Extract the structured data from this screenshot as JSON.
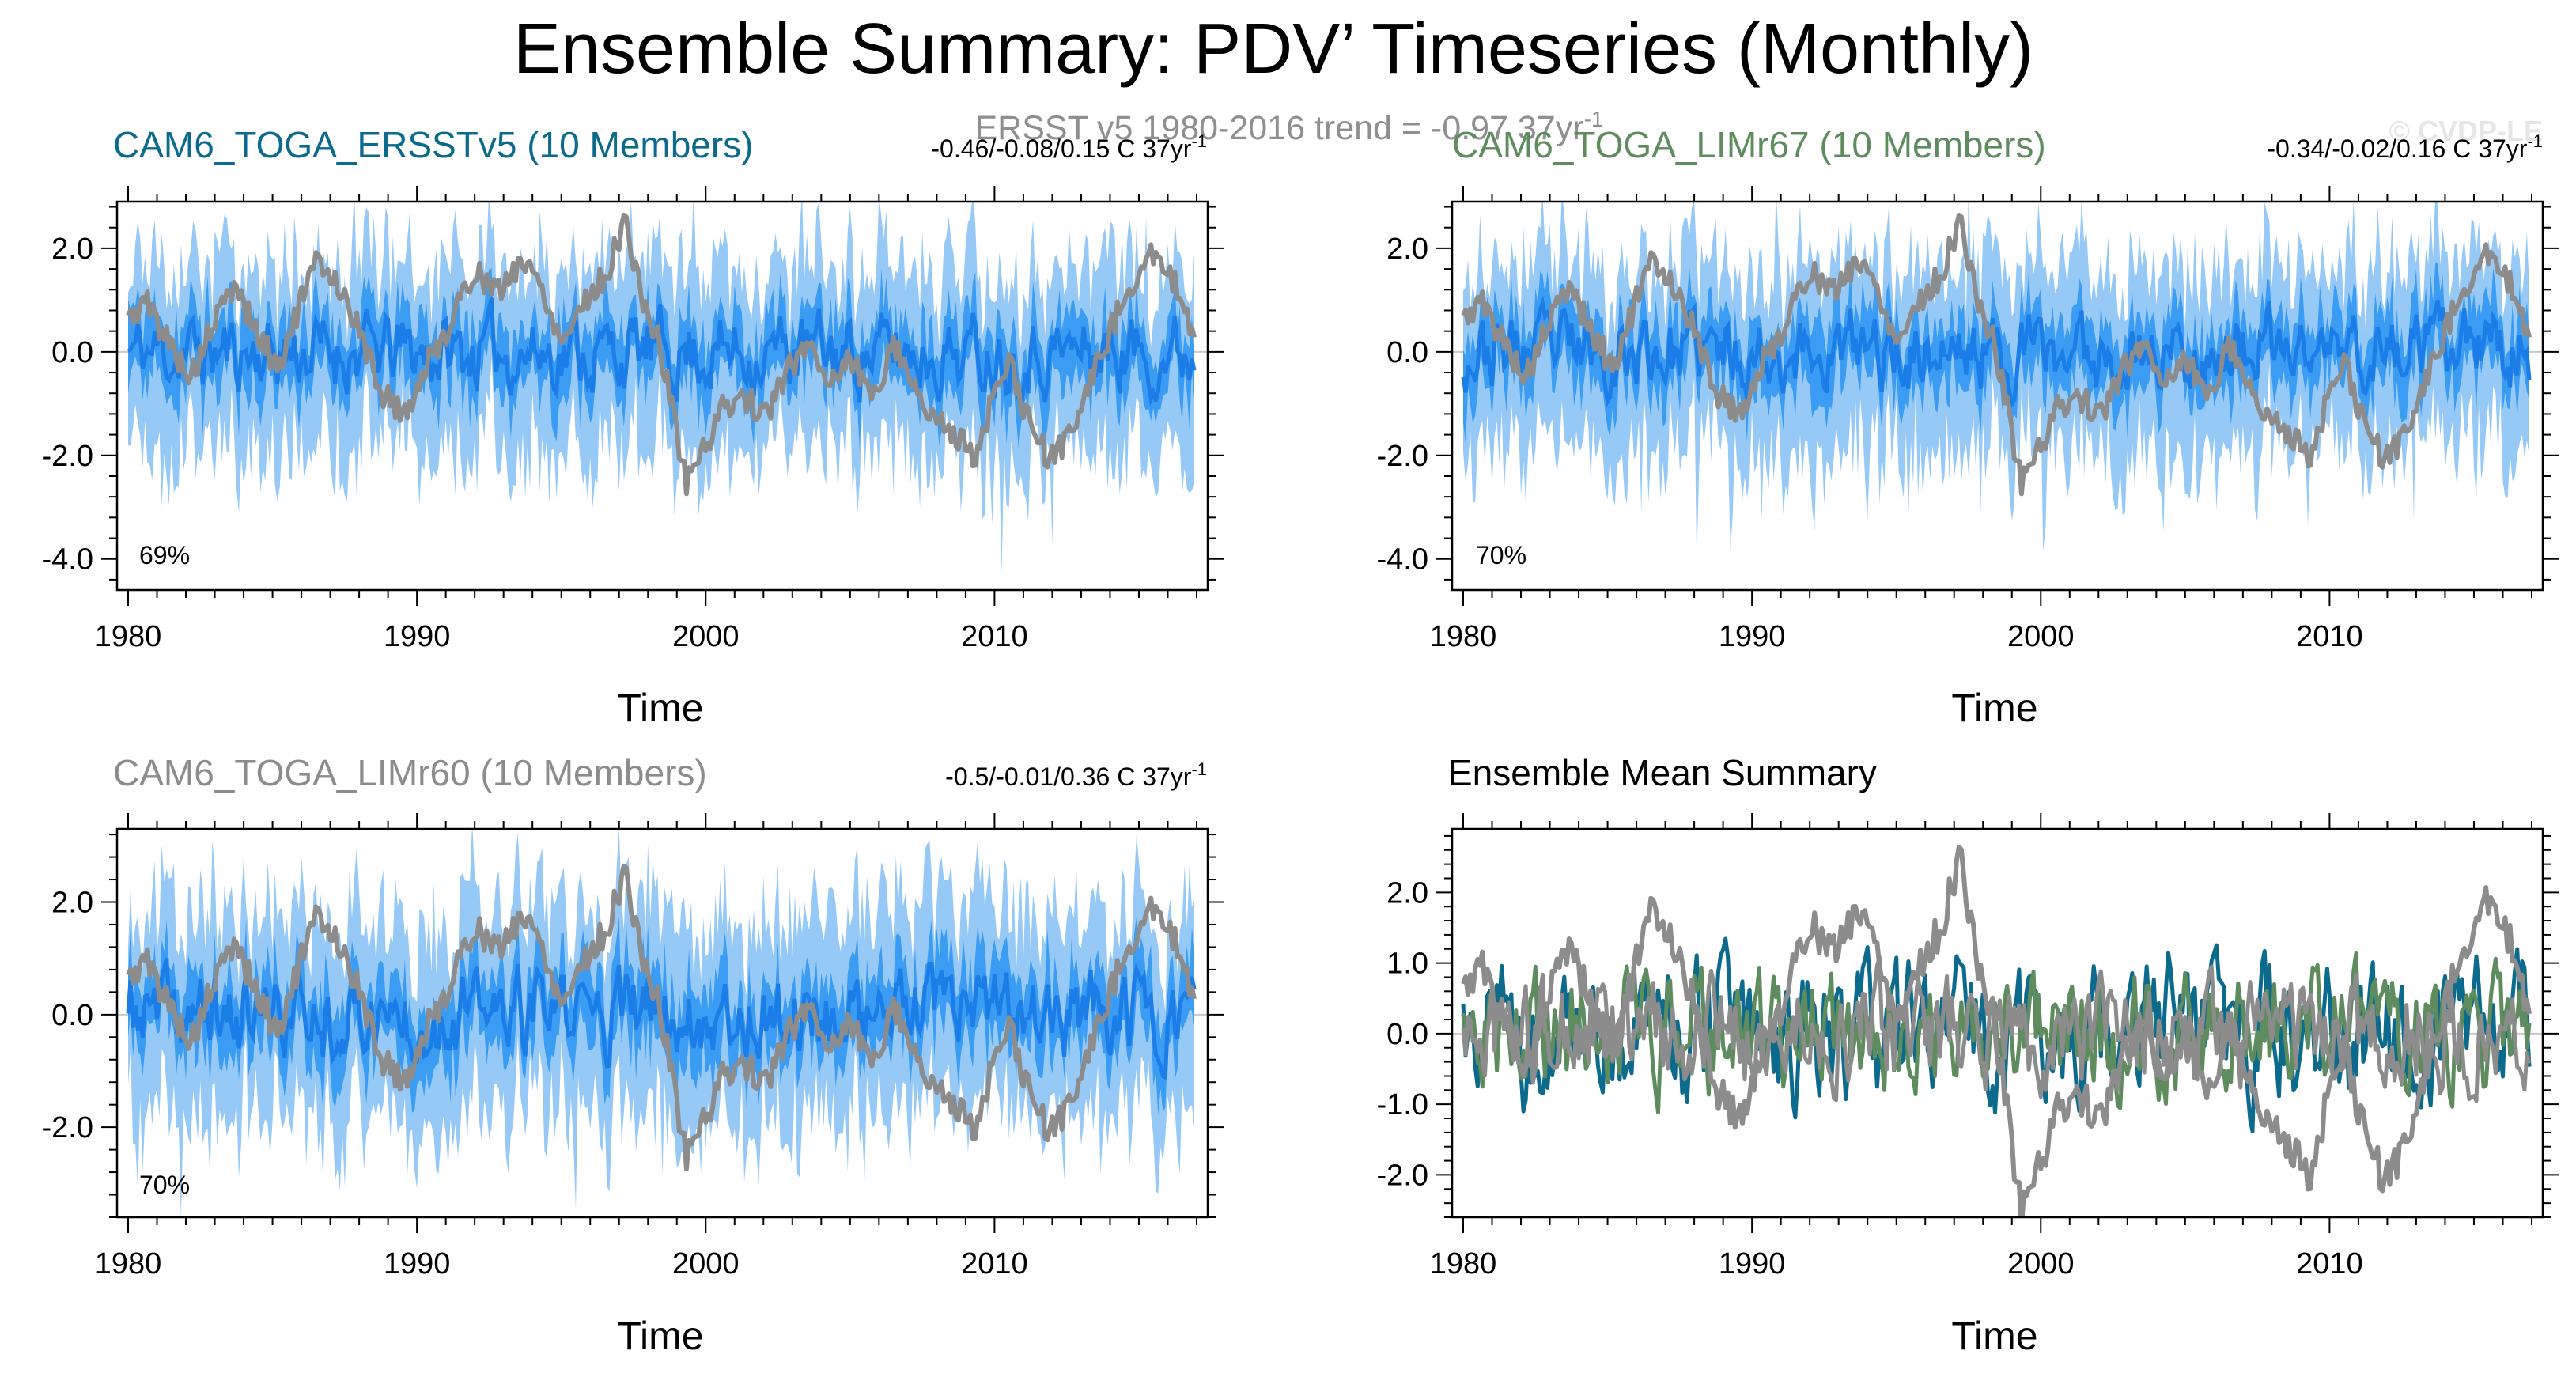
{
  "figure": {
    "title": "Ensemble Summary: PDV’ Timeseries (Monthly)",
    "subtitle": "ERSST v5 1980-2016 trend = -0.97 37yr",
    "subtitle_sup": "-1",
    "watermark": "© CVDP-LE"
  },
  "colors": {
    "ersst_member_spread": "#97c9f6",
    "ersst_iqr": "#3a9cf2",
    "ersst_mean": "#1a7de8",
    "obs": "#8c8c8c",
    "cam6_ersst": "#0c6b8c",
    "cam6_limr67": "#5f8c5f",
    "cam6_limr60": "#8c8c8c"
  },
  "chart_data": [
    {
      "type": "area",
      "panel": "CAM6_TOGA_ERSSTv5",
      "title": "CAM6_TOGA_ERSSTv5 (10 Members)",
      "title_color": "#0c6b8c",
      "trend_label": "-0.46/-0.08/0.15 C 37yr",
      "trend_sup": "-1",
      "percent_label": "69%",
      "xlabel": "Time",
      "ylabel": "",
      "xlim": [
        1980,
        2017
      ],
      "ylim": [
        -4.6,
        2.9
      ],
      "yticks": [
        -4.0,
        -2.0,
        0.0,
        2.0
      ],
      "ytick_labels": [
        "-4.0",
        "-2.0",
        "0.0",
        "2.0"
      ],
      "xticks": [
        1980,
        1990,
        2000,
        2010
      ],
      "xtick_labels": [
        "1980",
        "1990",
        "2000",
        "2010"
      ],
      "seed": 11,
      "series": [
        {
          "name": "ensemble min-max range (10 members)",
          "style": "band",
          "lower_approx": -2.0,
          "upper_approx": 1.8,
          "extremes": {
            "min": -3.9,
            "max": 2.4
          }
        },
        {
          "name": "ensemble interquartile range",
          "style": "band",
          "lower_approx": -0.9,
          "upper_approx": 0.9
        },
        {
          "name": "ensemble mean",
          "style": "line",
          "range": [
            -0.7,
            0.7
          ]
        },
        {
          "name": "ERSST v5 observations",
          "style": "line",
          "min": -2.5,
          "max": 2.6
        }
      ]
    },
    {
      "type": "area",
      "panel": "CAM6_TOGA_LIMr67",
      "title": "CAM6_TOGA_LIMr67 (10 Members)",
      "title_color": "#5f8c5f",
      "trend_label": "-0.34/-0.02/0.16 C 37yr",
      "trend_sup": "-1",
      "percent_label": "70%",
      "xlabel": "Time",
      "ylabel": "",
      "xlim": [
        1980,
        2017
      ],
      "ylim": [
        -4.6,
        2.9
      ],
      "yticks": [
        -4.0,
        -2.0,
        0.0,
        2.0
      ],
      "ytick_labels": [
        "-4.0",
        "-2.0",
        "0.0",
        "2.0"
      ],
      "xticks": [
        1980,
        1990,
        2000,
        2010
      ],
      "xtick_labels": [
        "1980",
        "1990",
        "2000",
        "2010"
      ],
      "seed": 23,
      "series": [
        {
          "name": "ensemble min-max range (10 members)",
          "style": "band",
          "lower_approx": -2.0,
          "upper_approx": 1.8,
          "extremes": {
            "min": -4.0,
            "max": 2.5
          }
        },
        {
          "name": "ensemble interquartile range",
          "style": "band",
          "lower_approx": -0.9,
          "upper_approx": 0.9
        },
        {
          "name": "ensemble mean",
          "style": "line",
          "range": [
            -0.7,
            0.7
          ]
        },
        {
          "name": "ERSST v5 observations",
          "style": "line",
          "min": -2.5,
          "max": 2.6
        }
      ]
    },
    {
      "type": "area",
      "panel": "CAM6_TOGA_LIMr60",
      "title": "CAM6_TOGA_LIMr60 (10 Members)",
      "title_color": "#8c8c8c",
      "trend_label": "-0.5/-0.01/0.36 C 37yr",
      "trend_sup": "-1",
      "percent_label": "70%",
      "xlabel": "Time",
      "ylabel": "",
      "xlim": [
        1980,
        2017
      ],
      "ylim": [
        -3.6,
        3.3
      ],
      "yticks": [
        -2.0,
        0.0,
        2.0
      ],
      "ytick_labels": [
        "-2.0",
        "0.0",
        "2.0"
      ],
      "xticks": [
        1980,
        1990,
        2000,
        2010
      ],
      "xtick_labels": [
        "1980",
        "1990",
        "2000",
        "2010"
      ],
      "seed": 37,
      "series": [
        {
          "name": "ensemble min-max range (10 members)",
          "style": "band",
          "lower_approx": -1.9,
          "upper_approx": 1.9,
          "extremes": {
            "min": -3.2,
            "max": 3.0
          }
        },
        {
          "name": "ensemble interquartile range",
          "style": "band",
          "lower_approx": -0.9,
          "upper_approx": 0.9
        },
        {
          "name": "ensemble mean",
          "style": "line",
          "range": [
            -0.7,
            0.7
          ]
        },
        {
          "name": "ERSST v5 observations",
          "style": "line",
          "min": -2.5,
          "max": 2.6
        }
      ]
    },
    {
      "type": "line",
      "panel": "ensemble-mean-summary",
      "title": "Ensemble Mean Summary",
      "title_color": "#000000",
      "xlabel": "Time",
      "ylabel": "",
      "xlim": [
        1980,
        2017
      ],
      "ylim": [
        -2.6,
        2.9
      ],
      "yticks": [
        -2.0,
        -1.0,
        0.0,
        1.0,
        2.0
      ],
      "ytick_labels": [
        "-2.0",
        "-1.0",
        "0.0",
        "1.0",
        "2.0"
      ],
      "xticks": [
        1980,
        1990,
        2000,
        2010
      ],
      "xtick_labels": [
        "1980",
        "1990",
        "2000",
        "2010"
      ],
      "series": [
        {
          "name": "ERSST v5 observations",
          "color": "#8c8c8c",
          "min": -2.5,
          "max": 2.6
        },
        {
          "name": "CAM6_TOGA_ERSSTv5 ensemble mean",
          "color": "#0c6b8c",
          "range": [
            -0.7,
            0.8
          ]
        },
        {
          "name": "CAM6_TOGA_LIMr67 ensemble mean",
          "color": "#5f8c5f",
          "range": [
            -0.6,
            0.9
          ]
        },
        {
          "name": "CAM6_TOGA_LIMr60 ensemble mean",
          "color": "#8c8c8c",
          "range": [
            -0.6,
            0.6
          ]
        }
      ]
    }
  ],
  "obs_anchors": [
    [
      1980.0,
      0.6
    ],
    [
      1980.6,
      1.0
    ],
    [
      1981.4,
      0.2
    ],
    [
      1982.2,
      -0.5
    ],
    [
      1983.0,
      0.6
    ],
    [
      1983.7,
      1.3
    ],
    [
      1984.5,
      0.3
    ],
    [
      1985.2,
      -0.3
    ],
    [
      1986.0,
      1.0
    ],
    [
      1986.6,
      1.8
    ],
    [
      1987.3,
      1.3
    ],
    [
      1988.0,
      0.4
    ],
    [
      1988.8,
      -0.8
    ],
    [
      1989.6,
      -1.2
    ],
    [
      1990.4,
      -0.2
    ],
    [
      1991.2,
      0.6
    ],
    [
      1992.0,
      1.6
    ],
    [
      1992.8,
      1.1
    ],
    [
      1993.6,
      1.8
    ],
    [
      1994.3,
      1.3
    ],
    [
      1995.0,
      0.2
    ],
    [
      1995.8,
      1.0
    ],
    [
      1996.6,
      1.5
    ],
    [
      1997.2,
      2.6
    ],
    [
      1997.7,
      1.2
    ],
    [
      1998.3,
      0.3
    ],
    [
      1998.9,
      -1.2
    ],
    [
      1999.3,
      -2.5
    ],
    [
      1999.9,
      -1.9
    ],
    [
      2000.6,
      -1.1
    ],
    [
      2001.3,
      -0.8
    ],
    [
      2002.0,
      -1.3
    ],
    [
      2002.8,
      -0.4
    ],
    [
      2003.6,
      0.2
    ],
    [
      2004.3,
      -0.6
    ],
    [
      2005.0,
      -0.1
    ],
    [
      2005.8,
      -0.9
    ],
    [
      2006.5,
      0.2
    ],
    [
      2007.2,
      -0.6
    ],
    [
      2007.8,
      -1.3
    ],
    [
      2008.6,
      -1.5
    ],
    [
      2009.3,
      -2.1
    ],
    [
      2009.9,
      -1.0
    ],
    [
      2010.5,
      -0.2
    ],
    [
      2011.2,
      -1.4
    ],
    [
      2011.9,
      -2.1
    ],
    [
      2012.6,
      -1.6
    ],
    [
      2013.3,
      -0.6
    ],
    [
      2014.0,
      0.4
    ],
    [
      2014.7,
      1.3
    ],
    [
      2015.3,
      1.9
    ],
    [
      2015.9,
      1.5
    ],
    [
      2016.5,
      1.1
    ],
    [
      2017.0,
      0.1
    ]
  ]
}
